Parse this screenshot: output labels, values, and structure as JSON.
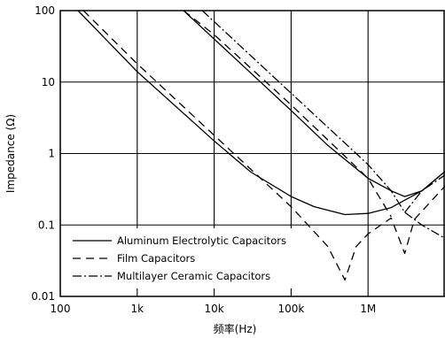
{
  "chart_data": {
    "type": "line",
    "xlabel": "频率(Hz)",
    "ylabel": "Impedance (Ω)",
    "x_scale": "log",
    "y_scale": "log",
    "xlim": [
      100,
      10000000
    ],
    "ylim": [
      0.01,
      100
    ],
    "x_ticks": [
      {
        "value": 100,
        "label": "100"
      },
      {
        "value": 1000,
        "label": "1k"
      },
      {
        "value": 10000,
        "label": "10k"
      },
      {
        "value": 100000,
        "label": "100k"
      },
      {
        "value": 1000000,
        "label": "1M"
      }
    ],
    "y_ticks": [
      {
        "value": 0.01,
        "label": "0.01"
      },
      {
        "value": 0.1,
        "label": "0.1"
      },
      {
        "value": 1,
        "label": "1"
      },
      {
        "value": 10,
        "label": "10"
      },
      {
        "value": 100,
        "label": "100"
      }
    ],
    "grid": true,
    "legend_position": "bottom-left",
    "series": [
      {
        "name": "Aluminum Electrolytic Capacitors",
        "dash": "solid",
        "curves": [
          [
            [
              170,
              100
            ],
            [
              1000,
              14
            ],
            [
              10000,
              1.5
            ],
            [
              30000,
              0.55
            ],
            [
              100000,
              0.25
            ],
            [
              200000,
              0.18
            ],
            [
              500000,
              0.14
            ],
            [
              1000000,
              0.145
            ],
            [
              2000000,
              0.175
            ],
            [
              5000000,
              0.3
            ],
            [
              10000000,
              0.56
            ]
          ],
          [
            [
              4000,
              100
            ],
            [
              10000,
              40
            ],
            [
              100000,
              4
            ],
            [
              300000,
              1.3
            ],
            [
              1000000,
              0.45
            ],
            [
              2000000,
              0.3
            ],
            [
              3000000,
              0.25
            ],
            [
              5000000,
              0.3
            ],
            [
              10000000,
              0.56
            ]
          ]
        ]
      },
      {
        "name": "Film Capacitors",
        "dash": "dashed",
        "curves": [
          [
            [
              200,
              100
            ],
            [
              1000,
              18
            ],
            [
              10000,
              1.8
            ],
            [
              100000,
              0.18
            ],
            [
              300000,
              0.05
            ],
            [
              500000,
              0.017
            ],
            [
              700000,
              0.05
            ],
            [
              1000000,
              0.075
            ],
            [
              2000000,
              0.125
            ],
            [
              3000000,
              0.04
            ],
            [
              4000000,
              0.12
            ],
            [
              10000000,
              0.35
            ]
          ],
          [
            [
              4000,
              100
            ],
            [
              10000,
              46
            ],
            [
              100000,
              4.8
            ],
            [
              1000000,
              0.45
            ],
            [
              2000000,
              0.13
            ]
          ]
        ]
      },
      {
        "name": "Multilayer Ceramic Capacitors",
        "dash": "dash-dot",
        "curves": [
          [
            [
              7000,
              100
            ],
            [
              100000,
              7
            ],
            [
              1000000,
              0.7
            ],
            [
              2000000,
              0.3
            ],
            [
              3000000,
              0.15
            ],
            [
              5000000,
              0.1
            ],
            [
              10000000,
              0.065
            ]
          ],
          [
            [
              3000000,
              0.15
            ],
            [
              5000000,
              0.3
            ],
            [
              10000000,
              0.5
            ]
          ]
        ]
      }
    ]
  }
}
